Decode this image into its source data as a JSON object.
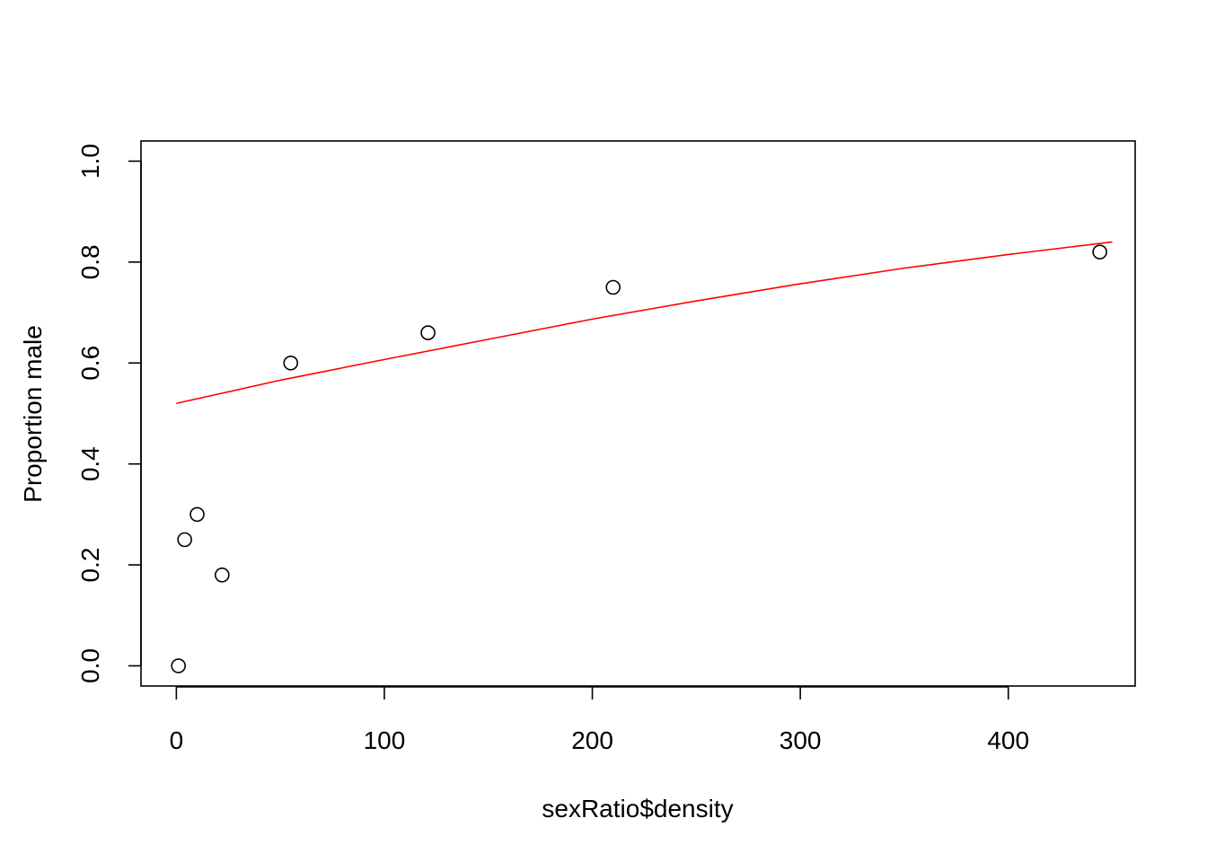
{
  "chart_data": {
    "type": "scatter",
    "title": "",
    "xlabel": "sexRatio$density",
    "ylabel": "Proportion male",
    "xlim": [
      -17,
      461
    ],
    "ylim": [
      -0.04,
      1.04
    ],
    "x_ticks": [
      0,
      100,
      200,
      300,
      400
    ],
    "y_ticks": [
      0.0,
      0.2,
      0.4,
      0.6,
      0.8,
      1.0
    ],
    "x_tick_labels": [
      "0",
      "100",
      "200",
      "300",
      "400"
    ],
    "y_tick_labels": [
      "0.0",
      "0.2",
      "0.4",
      "0.6",
      "0.8",
      "1.0"
    ],
    "grid": false,
    "series": [
      {
        "type": "points",
        "marker": "open-circle",
        "color": "#000000",
        "x": [
          1,
          4,
          10,
          22,
          55,
          121,
          210,
          444
        ],
        "y": [
          0.0,
          0.25,
          0.3,
          0.18,
          0.6,
          0.66,
          0.75,
          0.82
        ]
      },
      {
        "type": "line",
        "color": "#ff0000",
        "x": [
          0,
          50,
          100,
          150,
          200,
          250,
          300,
          350,
          400,
          450
        ],
        "y": [
          0.52,
          0.566,
          0.607,
          0.647,
          0.687,
          0.723,
          0.757,
          0.788,
          0.815,
          0.84
        ]
      }
    ]
  }
}
